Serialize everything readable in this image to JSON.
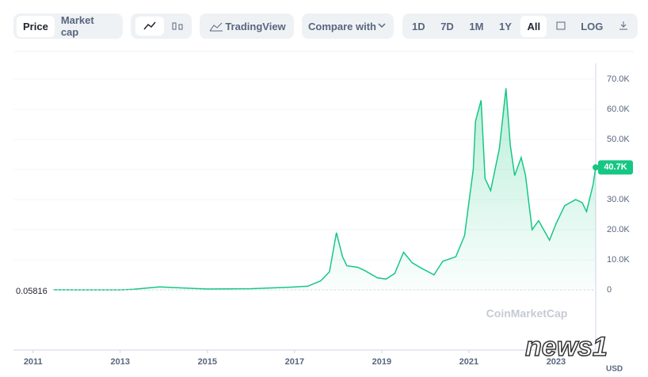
{
  "toolbar": {
    "price": "Price",
    "market_cap": "Market cap",
    "tradingview": "TradingView",
    "compare": "Compare with",
    "ranges": [
      "1D",
      "7D",
      "1M",
      "1Y",
      "All"
    ],
    "log": "LOG"
  },
  "chart_data": {
    "type": "line",
    "color": "#16c784",
    "grid": true,
    "watermark": "CoinMarketCap",
    "overlay_logo": "news1",
    "y_unit": "USD",
    "xlim": [
      2010.55,
      2023.91
    ],
    "xticks": [
      2011,
      2013,
      2015,
      2017,
      2019,
      2021,
      2023
    ],
    "ylim": [
      0,
      70000
    ],
    "yticks": [
      0,
      {
        "value": 10000,
        "label": "10.0K"
      },
      {
        "value": 20000,
        "label": "20.0K"
      },
      {
        "value": 30000,
        "label": "30.0K"
      },
      {
        "value": 40000,
        "label": "40.0K"
      },
      {
        "value": 50000,
        "label": "50.0K"
      },
      {
        "value": 60000,
        "label": "60.0K"
      },
      {
        "value": 70000,
        "label": "70.0K"
      }
    ],
    "x": [
      2010.55,
      2011.5,
      2012,
      2013,
      2013.3,
      2013.9,
      2014.5,
      2015,
      2016,
      2016.9,
      2017.3,
      2017.6,
      2017.8,
      2017.96,
      2018.1,
      2018.2,
      2018.45,
      2018.6,
      2018.9,
      2019.1,
      2019.3,
      2019.5,
      2019.7,
      2019.9,
      2020.2,
      2020.4,
      2020.7,
      2020.9,
      2021.0,
      2021.1,
      2021.15,
      2021.28,
      2021.37,
      2021.5,
      2021.6,
      2021.7,
      2021.85,
      2021.95,
      2022.05,
      2022.2,
      2022.3,
      2022.45,
      2022.6,
      2022.85,
      2023.0,
      2023.2,
      2023.45,
      2023.6,
      2023.7,
      2023.85,
      2023.91
    ],
    "values": [
      0.05816,
      15,
      5,
      13,
      200,
      1000,
      600,
      300,
      400,
      900,
      1200,
      3000,
      6000,
      19000,
      11000,
      8000,
      7500,
      6500,
      4000,
      3600,
      5500,
      12500,
      9000,
      7300,
      5000,
      9500,
      11000,
      18000,
      29000,
      40000,
      56000,
      63000,
      37000,
      33000,
      40000,
      47000,
      67000,
      48000,
      38000,
      44000,
      38000,
      20000,
      23000,
      16500,
      22000,
      28000,
      30000,
      29000,
      26000,
      35000,
      40700
    ],
    "value_labels": [
      "0.05816",
      null,
      null,
      null,
      null,
      null,
      null,
      null,
      null,
      null,
      null,
      null,
      null,
      null,
      null,
      null,
      null,
      null,
      null,
      null,
      null,
      null,
      null,
      null,
      null,
      null,
      null,
      null,
      null,
      null,
      null,
      null,
      null,
      null,
      null,
      null,
      null,
      null,
      null,
      null,
      null,
      null,
      null,
      null,
      null,
      null,
      null,
      null,
      null,
      null,
      "40.7K"
    ]
  }
}
